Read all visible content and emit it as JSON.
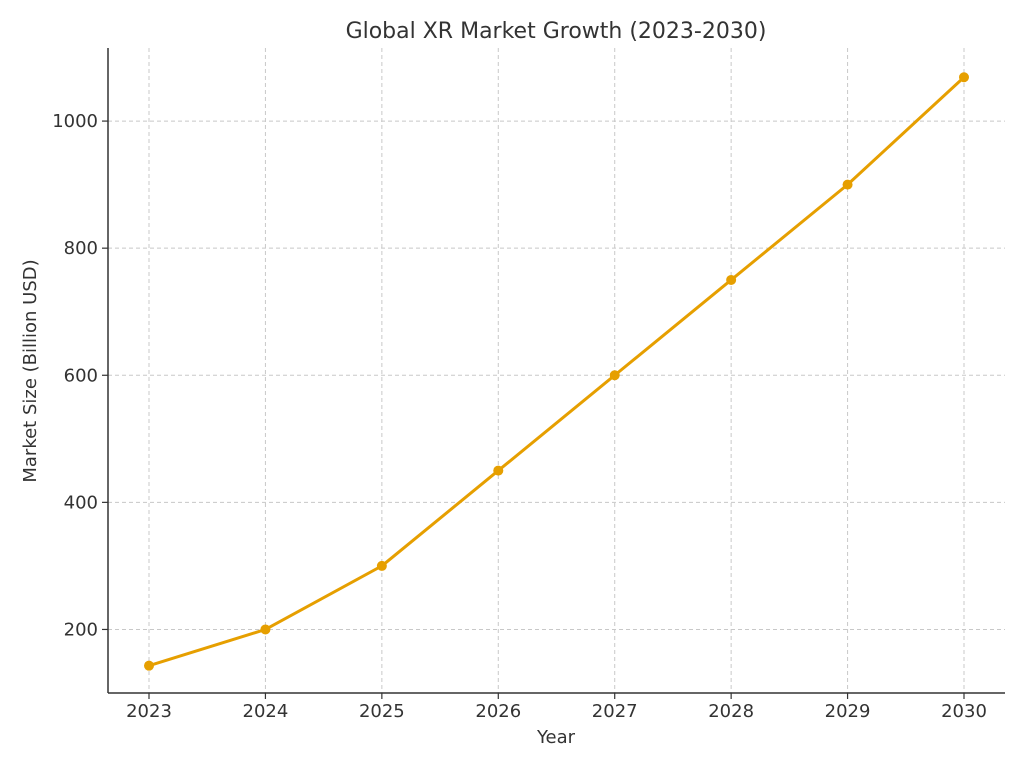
{
  "chart_data": {
    "type": "line",
    "title": "Global XR Market Growth (2023-2030)",
    "xlabel": "Year",
    "ylabel": "Market Size (Billion USD)",
    "categories": [
      "2023",
      "2024",
      "2025",
      "2026",
      "2027",
      "2028",
      "2029",
      "2030"
    ],
    "series": [
      {
        "values": [
          143,
          200,
          300,
          450,
          600,
          750,
          900,
          1069
        ],
        "color": "#e69f00"
      }
    ],
    "yticks": [
      200,
      400,
      600,
      800,
      1000
    ],
    "ylim": [
      100,
      1115
    ],
    "grid": true,
    "marker": "circle"
  }
}
